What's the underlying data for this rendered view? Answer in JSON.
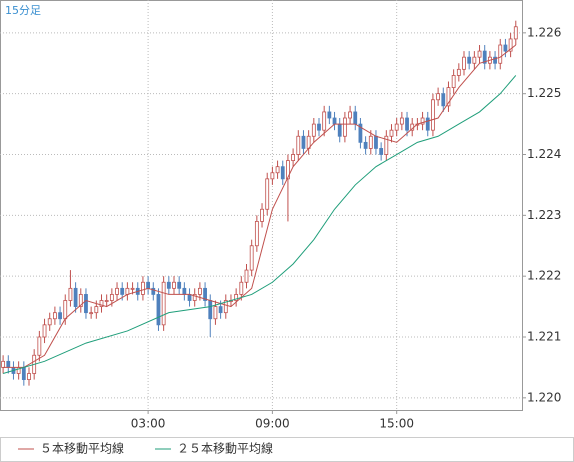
{
  "chart_data": {
    "type": "candlestick",
    "title": "15分足",
    "candles": {
      "x": [
        -4,
        -3.75,
        -3.5,
        -3.25,
        -3,
        -2.75,
        -2.5,
        -2.25,
        -2,
        -1.75,
        -1.5,
        -1.25,
        -1,
        -0.75,
        -0.5,
        -0.25,
        0,
        0.25,
        0.5,
        0.75,
        1,
        1.25,
        1.5,
        1.75,
        2,
        2.25,
        2.5,
        2.75,
        3,
        3.25,
        3.5,
        3.75,
        4,
        4.25,
        4.5,
        4.75,
        5,
        5.25,
        5.5,
        5.75,
        6,
        6.25,
        6.5,
        6.75,
        7,
        7.25,
        7.5,
        7.75,
        8,
        8.25,
        8.5,
        8.75,
        9,
        9.25,
        9.5,
        9.75,
        10,
        10.25,
        10.5,
        10.75,
        11,
        11.25,
        11.5,
        11.75,
        12,
        12.25,
        12.5,
        12.75,
        13,
        13.25,
        13.5,
        13.75,
        14,
        14.25,
        14.5,
        14.75,
        15,
        15.25,
        15.5,
        15.75,
        16,
        16.25,
        16.5,
        16.75,
        17,
        17.25,
        17.5,
        17.75,
        18,
        18.25,
        18.5,
        18.75,
        19,
        19.25,
        19.5,
        19.75,
        20,
        20.25,
        20.5,
        20.75
      ],
      "open": [
        1.2205,
        1.2206,
        1.2205,
        1.2204,
        1.2205,
        1.2203,
        1.2204,
        1.2207,
        1.221,
        1.2212,
        1.2213,
        1.2214,
        1.2213,
        1.2216,
        1.2218,
        1.2215,
        1.2217,
        1.2214,
        1.2214,
        1.2215,
        1.2216,
        1.2216,
        1.2217,
        1.2218,
        1.2217,
        1.2218,
        1.2218,
        1.2217,
        1.2219,
        1.2218,
        1.2217,
        1.2212,
        1.2219,
        1.2218,
        1.2219,
        1.2218,
        1.2217,
        1.2216,
        1.2217,
        1.2218,
        1.2216,
        1.2213,
        1.2215,
        1.2214,
        1.2216,
        1.2216,
        1.2217,
        1.2219,
        1.2221,
        1.2225,
        1.2229,
        1.2231,
        1.2236,
        1.2237,
        1.2238,
        1.2236,
        1.2239,
        1.224,
        1.2243,
        1.2241,
        1.2243,
        1.2245,
        1.2244,
        1.2247,
        1.2246,
        1.2245,
        1.2243,
        1.2246,
        1.2247,
        1.2245,
        1.2242,
        1.2241,
        1.2243,
        1.2241,
        1.224,
        1.2243,
        1.2244,
        1.2245,
        1.2246,
        1.2244,
        1.2245,
        1.2245,
        1.2246,
        1.2244,
        1.2249,
        1.225,
        1.2248,
        1.2251,
        1.2253,
        1.2254,
        1.2256,
        1.2255,
        1.2256,
        1.2257,
        1.2255,
        1.2256,
        1.2255,
        1.2258,
        1.2257,
        1.2259
      ],
      "high": [
        1.2207,
        1.2207,
        1.2206,
        1.2206,
        1.2206,
        1.2205,
        1.2208,
        1.2211,
        1.2213,
        1.2214,
        1.2215,
        1.2215,
        1.2217,
        1.2221,
        1.2219,
        1.2218,
        1.2218,
        1.2215,
        1.2216,
        1.2217,
        1.2217,
        1.2218,
        1.2219,
        1.2219,
        1.2219,
        1.2219,
        1.2219,
        1.222,
        1.222,
        1.2219,
        1.2218,
        1.222,
        1.222,
        1.222,
        1.222,
        1.2219,
        1.2218,
        1.2218,
        1.2219,
        1.2219,
        1.2217,
        1.2216,
        1.2216,
        1.2217,
        1.2217,
        1.2218,
        1.222,
        1.2222,
        1.2226,
        1.223,
        1.2232,
        1.2237,
        1.2238,
        1.2239,
        1.2239,
        1.224,
        1.2241,
        1.2244,
        1.2244,
        1.2244,
        1.2246,
        1.2246,
        1.2248,
        1.2248,
        1.2247,
        1.2246,
        1.2247,
        1.2248,
        1.2248,
        1.2246,
        1.2243,
        1.2244,
        1.2244,
        1.2242,
        1.2244,
        1.2245,
        1.2246,
        1.2247,
        1.2247,
        1.2246,
        1.2246,
        1.2247,
        1.2247,
        1.225,
        1.2251,
        1.2251,
        1.2252,
        1.2254,
        1.2255,
        1.2257,
        1.2257,
        1.2257,
        1.2258,
        1.2258,
        1.2257,
        1.2257,
        1.2259,
        1.2259,
        1.226,
        1.2262
      ],
      "low": [
        1.2204,
        1.2204,
        1.2203,
        1.2203,
        1.2202,
        1.2202,
        1.2203,
        1.2206,
        1.2209,
        1.2211,
        1.2212,
        1.2212,
        1.2212,
        1.2215,
        1.2214,
        1.2214,
        1.2213,
        1.2213,
        1.2213,
        1.2214,
        1.2215,
        1.2215,
        1.2216,
        1.2216,
        1.2216,
        1.2217,
        1.2216,
        1.2216,
        1.2217,
        1.2216,
        1.2211,
        1.2211,
        1.2217,
        1.2217,
        1.2217,
        1.2216,
        1.2215,
        1.2215,
        1.2216,
        1.2215,
        1.221,
        1.2212,
        1.2213,
        1.2213,
        1.2215,
        1.2215,
        1.2216,
        1.2218,
        1.222,
        1.2224,
        1.2228,
        1.223,
        1.2235,
        1.2236,
        1.2235,
        1.2229,
        1.2238,
        1.2239,
        1.224,
        1.224,
        1.2242,
        1.2243,
        1.2243,
        1.2245,
        1.2244,
        1.2242,
        1.2242,
        1.2245,
        1.2244,
        1.2241,
        1.224,
        1.224,
        1.224,
        1.2239,
        1.2239,
        1.2242,
        1.2243,
        1.2244,
        1.2243,
        1.2243,
        1.2244,
        1.2244,
        1.2243,
        1.2243,
        1.2248,
        1.2247,
        1.2247,
        1.225,
        1.2252,
        1.2253,
        1.2254,
        1.2254,
        1.2255,
        1.2254,
        1.2254,
        1.2254,
        1.2254,
        1.2256,
        1.2256,
        1.2258
      ],
      "close": [
        1.2206,
        1.2205,
        1.2204,
        1.2205,
        1.2203,
        1.2204,
        1.2207,
        1.221,
        1.2212,
        1.2213,
        1.2214,
        1.2213,
        1.2216,
        1.2218,
        1.2215,
        1.2217,
        1.2214,
        1.2214,
        1.2215,
        1.2216,
        1.2216,
        1.2217,
        1.2218,
        1.2217,
        1.2218,
        1.2218,
        1.2217,
        1.2219,
        1.2218,
        1.2217,
        1.2212,
        1.2219,
        1.2218,
        1.2219,
        1.2218,
        1.2217,
        1.2216,
        1.2217,
        1.2218,
        1.2216,
        1.2213,
        1.2215,
        1.2214,
        1.2216,
        1.2216,
        1.2217,
        1.2219,
        1.2221,
        1.2225,
        1.2229,
        1.2231,
        1.2236,
        1.2237,
        1.2238,
        1.2236,
        1.2239,
        1.224,
        1.2243,
        1.2241,
        1.2243,
        1.2245,
        1.2244,
        1.2247,
        1.2246,
        1.2245,
        1.2243,
        1.2246,
        1.2247,
        1.2245,
        1.2242,
        1.2241,
        1.2243,
        1.2241,
        1.224,
        1.2243,
        1.2244,
        1.2245,
        1.2246,
        1.2244,
        1.2245,
        1.2245,
        1.2246,
        1.2244,
        1.2249,
        1.225,
        1.2248,
        1.2251,
        1.2253,
        1.2254,
        1.2256,
        1.2255,
        1.2256,
        1.2257,
        1.2255,
        1.2256,
        1.2255,
        1.2258,
        1.2257,
        1.2259,
        1.2261
      ],
      "up_color": "#c0504d",
      "down_color": "#4f81bd"
    },
    "series": [
      {
        "name": "５本移動平均線",
        "color": "#c0504d",
        "x": [
          -4,
          -3,
          -2,
          -1,
          0,
          1,
          2,
          3,
          4,
          5,
          6,
          7,
          8,
          9,
          10,
          11,
          12,
          13,
          14,
          15,
          16,
          17,
          18,
          19,
          20,
          20.75
        ],
        "values": [
          1.2205,
          1.2205,
          1.2207,
          1.2213,
          1.2216,
          1.2215,
          1.2217,
          1.2218,
          1.2217,
          1.2217,
          1.2216,
          1.2215,
          1.2218,
          1.2231,
          1.2238,
          1.2242,
          1.2245,
          1.2245,
          1.2243,
          1.2242,
          1.2245,
          1.2246,
          1.2251,
          1.2255,
          1.2256,
          1.2258
        ]
      },
      {
        "name": "２５本移動平均線",
        "color": "#1f9e7a",
        "x": [
          -4,
          -2,
          0,
          2,
          4,
          6,
          8,
          9,
          10,
          11,
          12,
          13,
          14,
          15,
          16,
          17,
          18,
          19,
          20,
          20.75
        ],
        "values": [
          1.2204,
          1.2206,
          1.2209,
          1.2211,
          1.2214,
          1.2215,
          1.2217,
          1.2219,
          1.2222,
          1.2226,
          1.2231,
          1.2235,
          1.2238,
          1.224,
          1.2242,
          1.2243,
          1.2245,
          1.2247,
          1.225,
          1.2253
        ]
      }
    ],
    "xlim": [
      -4.15,
      21.05
    ],
    "xticks": [
      {
        "value": 3,
        "label": "03:00"
      },
      {
        "value": 9,
        "label": "09:00"
      },
      {
        "value": 15,
        "label": "15:00"
      }
    ],
    "ylim": [
      1.2198,
      1.22654
    ],
    "yticks": [
      {
        "value": 1.22,
        "label": "1.220"
      },
      1.221,
      1.222,
      1.223,
      1.224,
      1.225,
      1.226
    ],
    "grid": true
  }
}
